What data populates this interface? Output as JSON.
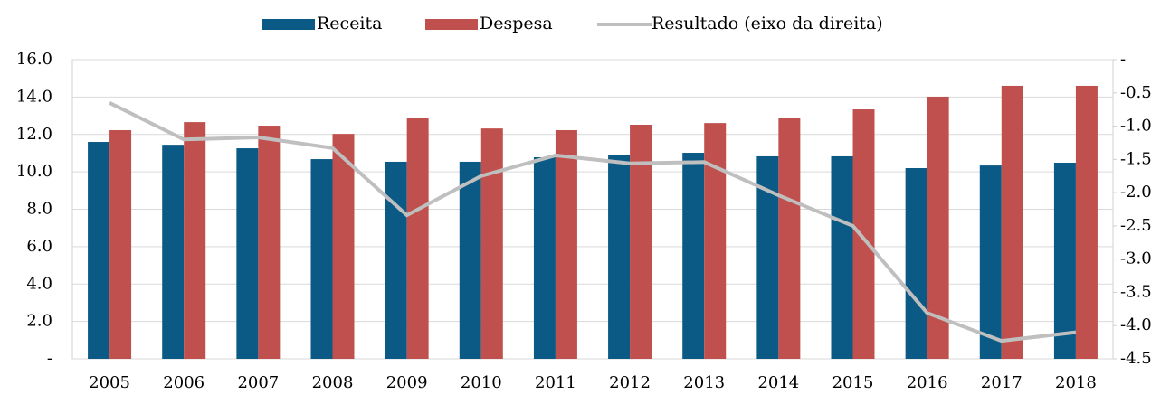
{
  "chart_data": {
    "type": "bar",
    "categories": [
      "2005",
      "2006",
      "2007",
      "2008",
      "2009",
      "2010",
      "2011",
      "2012",
      "2013",
      "2014",
      "2015",
      "2016",
      "2017",
      "2018"
    ],
    "series": [
      {
        "name": "Receita",
        "color": "#0b5a85",
        "values": [
          11.6,
          11.45,
          11.26,
          10.68,
          10.54,
          10.54,
          10.78,
          10.92,
          11.02,
          10.83,
          10.83,
          10.2,
          10.34,
          10.49
        ]
      },
      {
        "name": "Despesa",
        "color": "#c0504d",
        "values": [
          12.23,
          12.66,
          12.47,
          12.03,
          12.9,
          12.32,
          12.23,
          12.52,
          12.61,
          12.86,
          13.34,
          14.02,
          14.6,
          14.6
        ]
      },
      {
        "name": "Resultado (eixo da direita)",
        "color": "#bfbfbf",
        "type": "line",
        "axis": "y2",
        "values": [
          -0.65,
          -1.2,
          -1.17,
          -1.33,
          -2.34,
          -1.75,
          -1.44,
          -1.56,
          -1.54,
          -2.04,
          -2.5,
          -3.81,
          -4.23,
          -4.1
        ]
      }
    ],
    "ylim": [
      0,
      16
    ],
    "yticks": [
      {
        "value": 0,
        "label": "-"
      },
      {
        "value": 2,
        "label": "2.0"
      },
      {
        "value": 4,
        "label": "4.0"
      },
      {
        "value": 6,
        "label": "6.0"
      },
      {
        "value": 8,
        "label": "8.0"
      },
      {
        "value": 10,
        "label": "10.0"
      },
      {
        "value": 12,
        "label": "12.0"
      },
      {
        "value": 14,
        "label": "14.0"
      },
      {
        "value": 16,
        "label": "16.0"
      }
    ],
    "y2lim": [
      -4.5,
      0
    ],
    "y2ticks": [
      -4.5,
      {
        "value": -4,
        "label": "-4.0"
      },
      -3.5,
      {
        "value": -3,
        "label": "-3.0"
      },
      -2.5,
      {
        "value": -2,
        "label": "-2.0"
      },
      -1.5,
      {
        "value": -1,
        "label": "-1.0"
      },
      -0.5,
      {
        "value": 0,
        "label": "-"
      }
    ],
    "grid": true,
    "legend": "top"
  }
}
